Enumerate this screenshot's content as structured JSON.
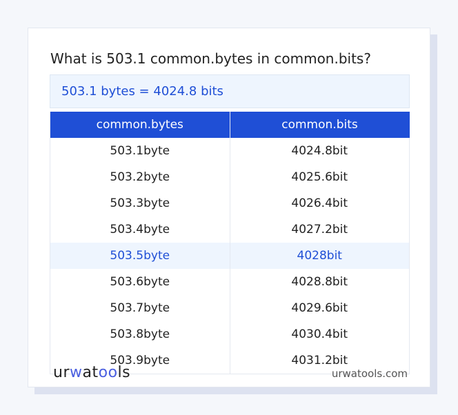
{
  "title": "What is 503.1 common.bytes in common.bits?",
  "result": "503.1 bytes = 4024.8 bits",
  "table": {
    "headers": [
      "common.bytes",
      "common.bits"
    ],
    "rows": [
      [
        "503.1byte",
        "4024.8bit"
      ],
      [
        "503.2byte",
        "4025.6bit"
      ],
      [
        "503.3byte",
        "4026.4bit"
      ],
      [
        "503.4byte",
        "4027.2bit"
      ],
      [
        "503.5byte",
        "4028bit"
      ],
      [
        "503.6byte",
        "4028.8bit"
      ],
      [
        "503.7byte",
        "4029.6bit"
      ],
      [
        "503.8byte",
        "4030.4bit"
      ],
      [
        "503.9byte",
        "4031.2bit"
      ]
    ],
    "highlighted_row": 4
  },
  "footer": {
    "logo": "urwatools",
    "site": "urwatools.com"
  },
  "colors": {
    "accent": "#1f4fd6",
    "highlight": "#eef5fe"
  }
}
